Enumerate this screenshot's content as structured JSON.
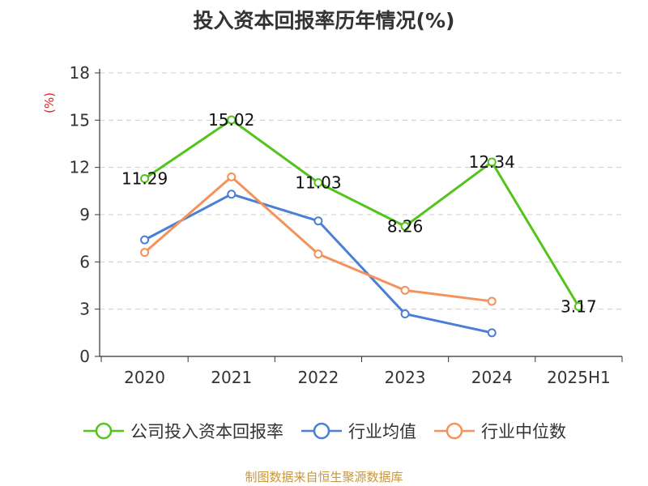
{
  "chart_data": {
    "type": "line",
    "title": "投入资本回报率历年情况(%)",
    "ylabel": "(%)",
    "categories": [
      "2020",
      "2021",
      "2022",
      "2023",
      "2024",
      "2025H1"
    ],
    "yticks": [
      "0",
      "3",
      "6",
      "9",
      "12",
      "15",
      "18"
    ],
    "ylim": [
      0,
      18
    ],
    "grid": true,
    "legend_position": "bottom",
    "series": [
      {
        "name": "公司投入资本回报率",
        "color": "#52c41a",
        "values": [
          11.29,
          15.02,
          11.03,
          8.26,
          12.34,
          3.17
        ],
        "labels": [
          "11.29",
          "15.02",
          "11.03",
          "8.26",
          "12.34",
          "3.17"
        ]
      },
      {
        "name": "行业均值",
        "color": "#4a7fd6",
        "values": [
          7.4,
          10.3,
          8.6,
          2.7,
          1.5,
          null
        ]
      },
      {
        "name": "行业中位数",
        "color": "#f5915a",
        "values": [
          6.6,
          11.4,
          6.5,
          4.2,
          3.5,
          null
        ]
      }
    ]
  },
  "ylabel_color": "#e02020",
  "source_note": "制图数据来自恒生聚源数据库",
  "source_color": "#c8963c"
}
